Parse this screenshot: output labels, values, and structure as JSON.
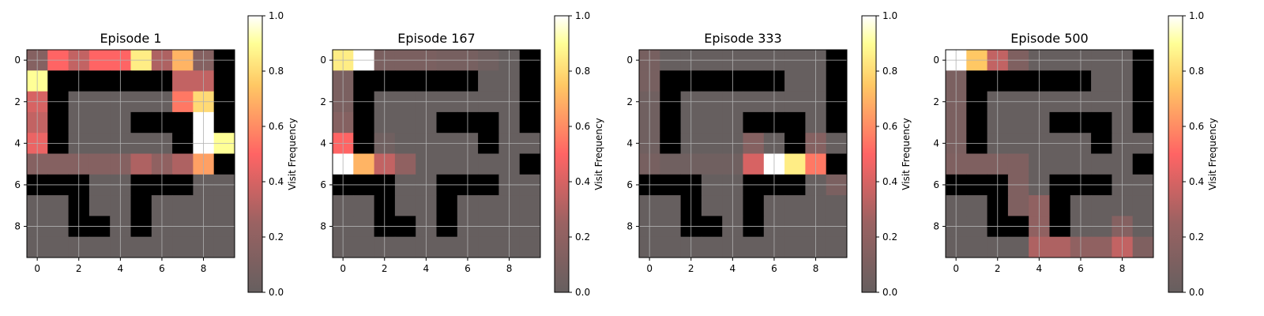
{
  "chart_data": {
    "type": "heatmap",
    "colorbar_label": "Visit Frequency",
    "colorbar_ticks": [
      "0.0",
      "0.2",
      "0.4",
      "0.6",
      "0.8",
      "1.0"
    ],
    "axis_ticks": [
      "0",
      "2",
      "4",
      "6",
      "8"
    ],
    "vmin": 0,
    "vmax": 1,
    "wall_color": "#000000",
    "grid": true,
    "colormap": "hot (reversed, alpha-blended)",
    "walls": [
      [
        0,
        0,
        0,
        0,
        0,
        0,
        0,
        0,
        0,
        1
      ],
      [
        0,
        1,
        1,
        1,
        1,
        1,
        1,
        0,
        0,
        1
      ],
      [
        0,
        1,
        0,
        0,
        0,
        0,
        0,
        0,
        0,
        1
      ],
      [
        0,
        1,
        0,
        0,
        0,
        1,
        1,
        1,
        0,
        1
      ],
      [
        0,
        1,
        0,
        0,
        0,
        0,
        0,
        1,
        0,
        0
      ],
      [
        0,
        0,
        0,
        0,
        0,
        0,
        0,
        0,
        0,
        1
      ],
      [
        1,
        1,
        1,
        0,
        0,
        1,
        1,
        1,
        0,
        0
      ],
      [
        0,
        0,
        1,
        0,
        0,
        1,
        0,
        0,
        0,
        0
      ],
      [
        0,
        0,
        1,
        1,
        0,
        1,
        0,
        0,
        0,
        0
      ],
      [
        0,
        0,
        0,
        0,
        0,
        0,
        0,
        0,
        0,
        0
      ]
    ],
    "panels": [
      {
        "title": "Episode 1",
        "values": [
          [
            0.15,
            0.5,
            0.35,
            0.5,
            0.5,
            0.85,
            0.3,
            0.7,
            0.15,
            0
          ],
          [
            0.9,
            0,
            0,
            0,
            0,
            0,
            0,
            0.35,
            0.35,
            0
          ],
          [
            0.4,
            0,
            0,
            0,
            0,
            0,
            0,
            0.55,
            0.8,
            0
          ],
          [
            0.35,
            0,
            0,
            0,
            0,
            0,
            0,
            0,
            1.0,
            0
          ],
          [
            0.45,
            0,
            0,
            0,
            0,
            0,
            0,
            0,
            1.0,
            0.9
          ],
          [
            0.15,
            0.15,
            0.15,
            0.15,
            0.15,
            0.3,
            0.2,
            0.3,
            0.65,
            0
          ],
          [
            0,
            0,
            0,
            0,
            0,
            0,
            0,
            0,
            0,
            0
          ],
          [
            0,
            0,
            0,
            0,
            0,
            0,
            0,
            0,
            0,
            0
          ],
          [
            0,
            0,
            0,
            0,
            0,
            0,
            0,
            0,
            0,
            0
          ],
          [
            0,
            0,
            0,
            0,
            0,
            0,
            0,
            0,
            0,
            0
          ]
        ]
      },
      {
        "title": "Episode 167",
        "values": [
          [
            0.85,
            1.0,
            0.1,
            0.1,
            0.1,
            0.08,
            0.08,
            0.05,
            0,
            0
          ],
          [
            0.1,
            0,
            0,
            0,
            0,
            0,
            0,
            0,
            0,
            0
          ],
          [
            0.1,
            0,
            0,
            0,
            0,
            0,
            0,
            0,
            0,
            0
          ],
          [
            0.15,
            0,
            0,
            0,
            0,
            0,
            0,
            0,
            0,
            0
          ],
          [
            0.5,
            0,
            0.05,
            0,
            0,
            0,
            0,
            0,
            0,
            0
          ],
          [
            1.0,
            0.7,
            0.35,
            0.2,
            0,
            0,
            0,
            0,
            0,
            0
          ],
          [
            0,
            0,
            0,
            0,
            0,
            0,
            0,
            0,
            0,
            0
          ],
          [
            0,
            0,
            0,
            0,
            0,
            0,
            0,
            0,
            0,
            0
          ],
          [
            0,
            0,
            0,
            0,
            0,
            0,
            0,
            0,
            0,
            0
          ],
          [
            0,
            0,
            0,
            0,
            0,
            0,
            0,
            0,
            0,
            0
          ]
        ]
      },
      {
        "title": "Episode 333",
        "values": [
          [
            0.08,
            0,
            0,
            0,
            0,
            0,
            0,
            0,
            0,
            0
          ],
          [
            0.08,
            0,
            0,
            0,
            0,
            0,
            0,
            0,
            0,
            0
          ],
          [
            0.05,
            0,
            0,
            0,
            0,
            0,
            0,
            0,
            0,
            0
          ],
          [
            0.05,
            0,
            0,
            0,
            0,
            0,
            0,
            0,
            0,
            0
          ],
          [
            0.05,
            0,
            0,
            0,
            0,
            0.15,
            0,
            0,
            0.15,
            0
          ],
          [
            0.08,
            0.05,
            0.05,
            0.05,
            0.05,
            0.4,
            1.0,
            0.85,
            0.55,
            0
          ],
          [
            0,
            0,
            0,
            0,
            0,
            0,
            0,
            0,
            0,
            0.1
          ],
          [
            0,
            0,
            0,
            0,
            0,
            0,
            0,
            0,
            0,
            0
          ],
          [
            0,
            0,
            0,
            0,
            0,
            0,
            0,
            0,
            0,
            0
          ],
          [
            0,
            0,
            0,
            0,
            0,
            0,
            0,
            0,
            0,
            0
          ]
        ]
      },
      {
        "title": "Episode 500",
        "values": [
          [
            1.0,
            0.75,
            0.35,
            0.12,
            0,
            0,
            0,
            0,
            0,
            0
          ],
          [
            0.1,
            0,
            0,
            0,
            0,
            0,
            0,
            0,
            0,
            0
          ],
          [
            0.1,
            0,
            0,
            0,
            0,
            0,
            0,
            0,
            0,
            0
          ],
          [
            0.1,
            0,
            0,
            0,
            0,
            0,
            0,
            0,
            0,
            0
          ],
          [
            0.1,
            0,
            0,
            0,
            0,
            0,
            0,
            0,
            0,
            0
          ],
          [
            0.12,
            0.12,
            0.12,
            0.12,
            0,
            0,
            0,
            0,
            0,
            0
          ],
          [
            0,
            0,
            0,
            0.12,
            0,
            0,
            0,
            0,
            0,
            0
          ],
          [
            0,
            0,
            0,
            0.12,
            0.2,
            0,
            0,
            0,
            0,
            0
          ],
          [
            0,
            0,
            0,
            0,
            0.2,
            0,
            0,
            0,
            0.15,
            0
          ],
          [
            0,
            0,
            0,
            0,
            0.3,
            0.3,
            0.2,
            0.2,
            0.35,
            0.12
          ]
        ]
      }
    ]
  }
}
